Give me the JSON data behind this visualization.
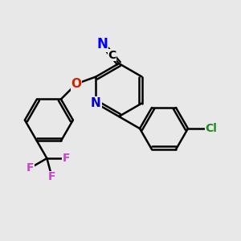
{
  "bg_color": "#e8e8e8",
  "atom_colors": {
    "N_nitrile": "#0000ff",
    "N_ring": "#0000cc",
    "O": "#cc2200",
    "Cl": "#228822",
    "F": "#cc44cc",
    "C": "#000000"
  },
  "bond_color": "#000000",
  "bond_width": 1.8,
  "font_size_atom": 11
}
